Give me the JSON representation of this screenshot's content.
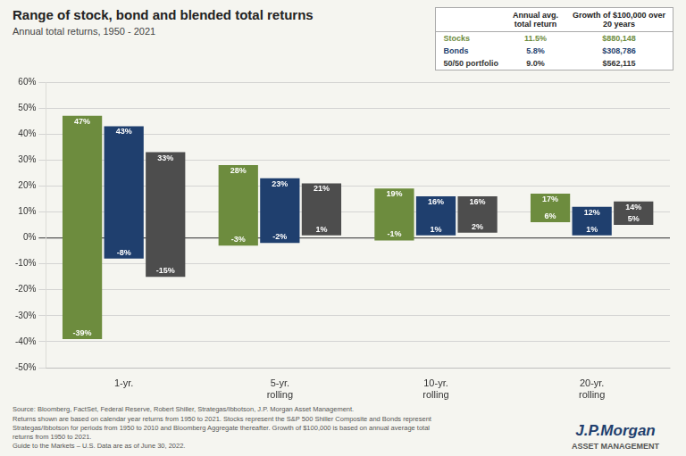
{
  "chart_data": {
    "type": "bar",
    "title": "Range of stock, bond and blended total returns",
    "subtitle": "Annual total returns, 1950 - 2021",
    "categories": [
      "1-yr.",
      "5-yr.\nrolling",
      "10-yr.\nrolling",
      "20-yr.\nrolling"
    ],
    "series": [
      {
        "name": "Stocks",
        "color": "#6d8c3e",
        "values": [
          [
            -39,
            47
          ],
          [
            -3,
            28
          ],
          [
            -1,
            19
          ],
          [
            6,
            17
          ]
        ],
        "value_labels": [
          [
            "-39%",
            "47%"
          ],
          [
            "-3%",
            "28%"
          ],
          [
            "-1%",
            "19%"
          ],
          [
            "6%",
            "17%"
          ]
        ]
      },
      {
        "name": "Bonds",
        "color": "#1f3f6e",
        "values": [
          [
            -8,
            43
          ],
          [
            -2,
            23
          ],
          [
            1,
            16
          ],
          [
            1,
            12
          ]
        ],
        "value_labels": [
          [
            "-8%",
            "43%"
          ],
          [
            "-2%",
            "23%"
          ],
          [
            "1%",
            "16%"
          ],
          [
            "1%",
            "12%"
          ]
        ]
      },
      {
        "name": "50/50 portfolio",
        "color": "#4d4d4d",
        "values": [
          [
            -15,
            33
          ],
          [
            1,
            21
          ],
          [
            2,
            16
          ],
          [
            5,
            14
          ]
        ],
        "value_labels": [
          [
            "-15%",
            "33%"
          ],
          [
            "1%",
            "21%"
          ],
          [
            "2%",
            "16%"
          ],
          [
            "5%",
            "14%"
          ]
        ]
      }
    ],
    "ylim": [
      -50,
      60
    ],
    "yticks": [
      {
        "value": -50,
        "label": "-50%"
      },
      {
        "value": -40,
        "label": "-40%"
      },
      {
        "value": -30,
        "label": "-30%"
      },
      {
        "value": -20,
        "label": "-20%"
      },
      {
        "value": -10,
        "label": "-10%"
      },
      {
        "value": 0,
        "label": "0%"
      },
      {
        "value": 10,
        "label": "10%"
      },
      {
        "value": 20,
        "label": "20%"
      },
      {
        "value": 30,
        "label": "30%"
      },
      {
        "value": 40,
        "label": "40%"
      },
      {
        "value": 50,
        "label": "50%"
      },
      {
        "value": 60,
        "label": "60%"
      }
    ],
    "grid": true,
    "data_labels": true,
    "table": {
      "header": [
        "Annual avg.\ntotal return",
        "Growth of $100,000 over\n20 years"
      ],
      "rows": [
        {
          "label": "Stocks",
          "avg": "11.5%",
          "growth": "$880,148",
          "color": "#6d8c3e"
        },
        {
          "label": "Bonds",
          "avg": "5.8%",
          "growth": "$308,786",
          "color": "#1f3f6e"
        },
        {
          "label": "50/50 portfolio",
          "avg": "9.0%",
          "growth": "$562,115",
          "color": "#333333"
        }
      ]
    },
    "source": "Source: Bloomberg, FactSet, Federal Reserve, Robert Shiller, Strategas/Ibbotson, J.P. Morgan Asset Management.\nReturns shown are based on calendar year returns from 1950 to 2021. Stocks represent the S&P 500 Shiller Composite and Bonds represent\nStrategas/Ibbotson for periods from 1950 to 2010 and Bloomberg Aggregate thereafter. Growth of $100,000 is based on annual average total\nreturns from 1950 to 2021.\nGuide to the Markets – U.S. Data are as of June 30, 2022.",
    "branding": [
      "J.P.Morgan",
      "ASSET MANAGEMENT"
    ]
  }
}
